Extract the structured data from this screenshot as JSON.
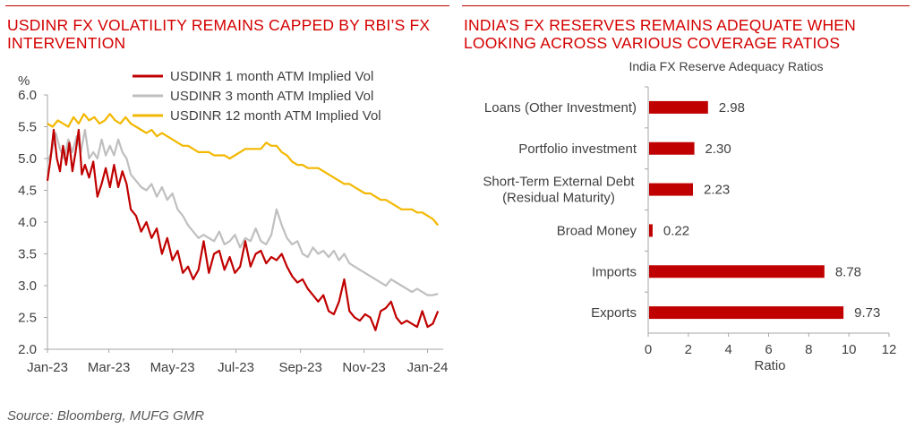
{
  "left_panel": {
    "title_lines": [
      "USDINR FX VOLATILITY REMAINS CAPPED BY RBI’S FX",
      "INTERVENTION"
    ]
  },
  "right_panel": {
    "title_lines": [
      "INDIA’S FX RESERVES REMAINS ADEQUATE WHEN",
      "LOOKING ACROSS VARIOUS COVERAGE RATIOS"
    ]
  },
  "source": "Source: Bloomberg, MUFG GMR",
  "colors": {
    "title_red": "#d40000",
    "bar_red": "#c00000",
    "line_1m": "#c00000",
    "line_3m": "#bfbfbf",
    "line_12m": "#f2b800",
    "axis": "#a6a6a6"
  },
  "chart_data": [
    {
      "type": "line",
      "title": "",
      "ylabel": "%",
      "xlabel": "",
      "ylim": [
        2.0,
        6.0
      ],
      "yticks": [
        "2.0",
        "2.5",
        "3.0",
        "3.5",
        "4.0",
        "4.5",
        "5.0",
        "5.5",
        "6.0"
      ],
      "xticks": [
        "Jan-23",
        "Mar-23",
        "May-23",
        "Jul-23",
        "Sep-23",
        "Nov-23",
        "Jan-24"
      ],
      "xtick_days": [
        0,
        59,
        120,
        181,
        243,
        304,
        365
      ],
      "xlim_days": [
        0,
        380
      ],
      "legend_position": "top-center",
      "grid": false,
      "series": [
        {
          "name": "USDINR 1 month ATM Implied Vol",
          "color": "#c00000",
          "days": [
            0,
            3,
            6,
            9,
            12,
            15,
            18,
            21,
            24,
            27,
            30,
            33,
            36,
            40,
            44,
            48,
            52,
            56,
            60,
            64,
            68,
            72,
            76,
            80,
            85,
            90,
            95,
            100,
            105,
            110,
            115,
            120,
            125,
            130,
            135,
            140,
            145,
            150,
            155,
            160,
            165,
            170,
            175,
            180,
            185,
            190,
            195,
            200,
            205,
            210,
            215,
            220,
            225,
            230,
            235,
            240,
            245,
            250,
            255,
            260,
            265,
            270,
            275,
            280,
            285,
            290,
            295,
            300,
            305,
            310,
            315,
            320,
            325,
            330,
            335,
            340,
            345,
            350,
            355,
            360,
            365,
            370,
            375
          ],
          "values": [
            4.65,
            5.0,
            5.45,
            5.0,
            4.8,
            5.2,
            4.9,
            5.25,
            4.8,
            5.1,
            5.45,
            4.75,
            4.9,
            4.7,
            4.95,
            4.4,
            4.6,
            4.85,
            4.55,
            4.9,
            4.55,
            4.8,
            4.6,
            4.2,
            4.1,
            3.85,
            4.0,
            3.75,
            3.9,
            3.5,
            3.75,
            3.4,
            3.55,
            3.2,
            3.3,
            3.1,
            3.25,
            3.7,
            3.2,
            3.5,
            3.55,
            3.25,
            3.45,
            3.2,
            3.3,
            3.7,
            3.3,
            3.5,
            3.55,
            3.35,
            3.45,
            3.4,
            3.5,
            3.3,
            3.15,
            3.05,
            3.1,
            2.95,
            2.85,
            2.75,
            2.85,
            2.6,
            2.55,
            2.75,
            3.1,
            2.6,
            2.5,
            2.45,
            2.55,
            2.5,
            2.3,
            2.6,
            2.65,
            2.75,
            2.5,
            2.4,
            2.45,
            2.4,
            2.35,
            2.6,
            2.35,
            2.4,
            2.6
          ]
        },
        {
          "name": "USDINR 3 month ATM Implied Vol",
          "color": "#bfbfbf",
          "days": [
            0,
            4,
            8,
            12,
            16,
            20,
            24,
            28,
            32,
            36,
            40,
            44,
            48,
            52,
            56,
            60,
            64,
            68,
            72,
            76,
            80,
            85,
            90,
            95,
            100,
            105,
            110,
            115,
            120,
            125,
            130,
            135,
            140,
            145,
            150,
            155,
            160,
            165,
            170,
            175,
            180,
            185,
            190,
            195,
            200,
            205,
            210,
            215,
            220,
            225,
            230,
            235,
            240,
            245,
            250,
            255,
            260,
            265,
            270,
            275,
            280,
            285,
            290,
            295,
            300,
            305,
            310,
            315,
            320,
            325,
            330,
            335,
            340,
            345,
            350,
            355,
            360,
            365,
            370,
            375
          ],
          "values": [
            4.95,
            5.1,
            5.4,
            5.15,
            5.0,
            5.3,
            5.1,
            5.35,
            5.1,
            5.45,
            5.0,
            5.1,
            5.0,
            5.3,
            5.05,
            5.2,
            5.05,
            5.3,
            5.1,
            5.0,
            4.75,
            4.65,
            4.55,
            4.5,
            4.6,
            4.4,
            4.55,
            4.35,
            4.45,
            4.2,
            4.1,
            3.95,
            3.85,
            3.75,
            3.8,
            3.75,
            3.7,
            3.85,
            3.65,
            3.7,
            3.8,
            3.6,
            3.75,
            3.7,
            3.9,
            3.7,
            3.65,
            3.8,
            4.2,
            3.95,
            3.75,
            3.65,
            3.7,
            3.5,
            3.45,
            3.6,
            3.5,
            3.55,
            3.45,
            3.55,
            3.4,
            3.5,
            3.35,
            3.3,
            3.25,
            3.2,
            3.15,
            3.1,
            3.05,
            3.0,
            3.1,
            3.05,
            3.0,
            2.95,
            2.9,
            2.95,
            2.9,
            2.85,
            2.85,
            2.87
          ]
        },
        {
          "name": "USDINR 12 month ATM Implied Vol",
          "color": "#f2b800",
          "days": [
            0,
            5,
            10,
            15,
            20,
            25,
            30,
            35,
            40,
            45,
            50,
            55,
            60,
            65,
            70,
            75,
            80,
            85,
            90,
            95,
            100,
            105,
            110,
            115,
            120,
            125,
            130,
            135,
            140,
            145,
            150,
            155,
            160,
            165,
            170,
            175,
            180,
            185,
            190,
            195,
            200,
            205,
            210,
            215,
            220,
            225,
            230,
            235,
            240,
            245,
            250,
            255,
            260,
            265,
            270,
            275,
            280,
            285,
            290,
            295,
            300,
            305,
            310,
            315,
            320,
            325,
            330,
            335,
            340,
            345,
            350,
            355,
            360,
            365,
            370,
            375
          ],
          "values": [
            5.55,
            5.5,
            5.6,
            5.55,
            5.5,
            5.65,
            5.55,
            5.7,
            5.6,
            5.65,
            5.55,
            5.6,
            5.7,
            5.6,
            5.55,
            5.65,
            5.55,
            5.5,
            5.45,
            5.4,
            5.45,
            5.35,
            5.4,
            5.35,
            5.3,
            5.25,
            5.2,
            5.2,
            5.15,
            5.1,
            5.1,
            5.1,
            5.05,
            5.05,
            5.05,
            5.0,
            5.05,
            5.1,
            5.15,
            5.15,
            5.15,
            5.15,
            5.25,
            5.2,
            5.2,
            5.1,
            5.05,
            4.95,
            4.9,
            4.9,
            4.85,
            4.85,
            4.85,
            4.8,
            4.75,
            4.7,
            4.65,
            4.6,
            4.6,
            4.55,
            4.5,
            4.45,
            4.45,
            4.4,
            4.35,
            4.35,
            4.3,
            4.25,
            4.2,
            4.2,
            4.2,
            4.15,
            4.15,
            4.1,
            4.05,
            3.95
          ]
        }
      ]
    },
    {
      "type": "bar",
      "orientation": "horizontal",
      "title": "India FX Reserve Adequacy Ratios",
      "xlabel": "Ratio",
      "ylabel": "",
      "xlim": [
        0,
        12
      ],
      "xticks": [
        "0",
        "2",
        "4",
        "6",
        "8",
        "10",
        "12"
      ],
      "categories": [
        [
          "Loans (Other Investment)"
        ],
        [
          "Portfolio investment"
        ],
        [
          "Short-Term External Debt",
          "(Residual Maturity)"
        ],
        [
          "Broad Money"
        ],
        [
          "Imports"
        ],
        [
          "Exports"
        ]
      ],
      "values": [
        2.98,
        2.3,
        2.23,
        0.22,
        8.78,
        9.73
      ],
      "value_labels": [
        "2.98",
        "2.30",
        "2.23",
        "0.22",
        "8.78",
        "9.73"
      ],
      "color": "#c00000"
    }
  ]
}
